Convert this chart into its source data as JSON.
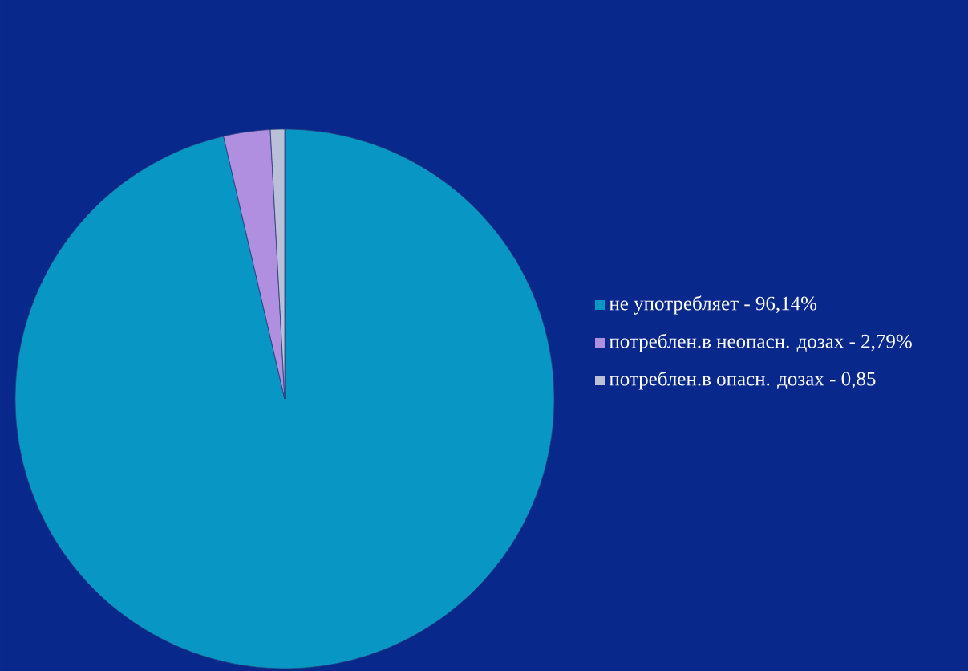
{
  "chart_data": {
    "type": "pie",
    "categories": [
      "не употребляет - 96,14%",
      "потреблен.в неопасн. дозах - 2,79%",
      "потреблен.в опасн. дозах -  0,85"
    ],
    "values": [
      96.14,
      2.79,
      0.85
    ],
    "colors": [
      "#0896c4",
      "#b08ee0",
      "#b9c0d8"
    ],
    "legend": "right"
  }
}
